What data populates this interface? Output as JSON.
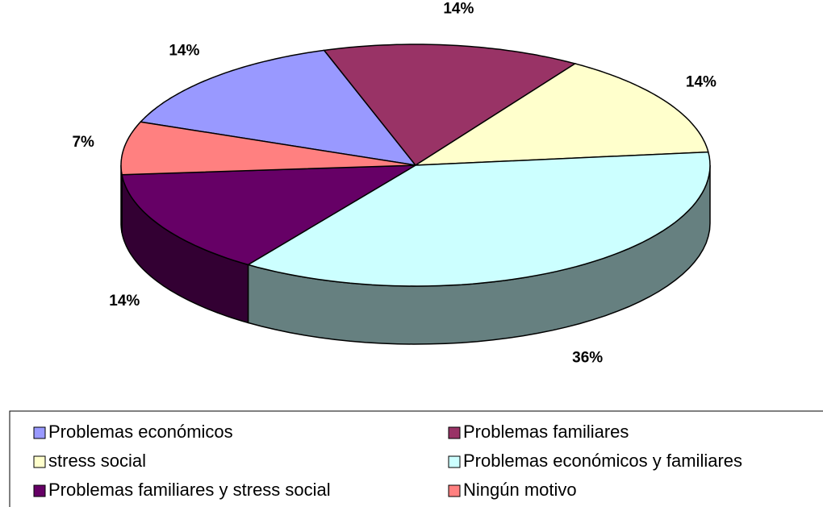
{
  "chart_data": {
    "type": "pie3d",
    "categories": [
      "Problemas económicos",
      "Problemas familiares",
      "stress social",
      "Problemas económicos y familiares",
      "Problemas familiares y stress social",
      "Ningún motivo"
    ],
    "values": [
      14,
      14,
      14,
      36,
      14,
      7
    ],
    "value_labels": [
      "14%",
      "14%",
      "14%",
      "36%",
      "14%",
      "7%"
    ],
    "colors": [
      "#9999ff",
      "#993366",
      "#ffffcc",
      "#ccffff",
      "#660066",
      "#ff8080"
    ],
    "legend": "bottom"
  }
}
